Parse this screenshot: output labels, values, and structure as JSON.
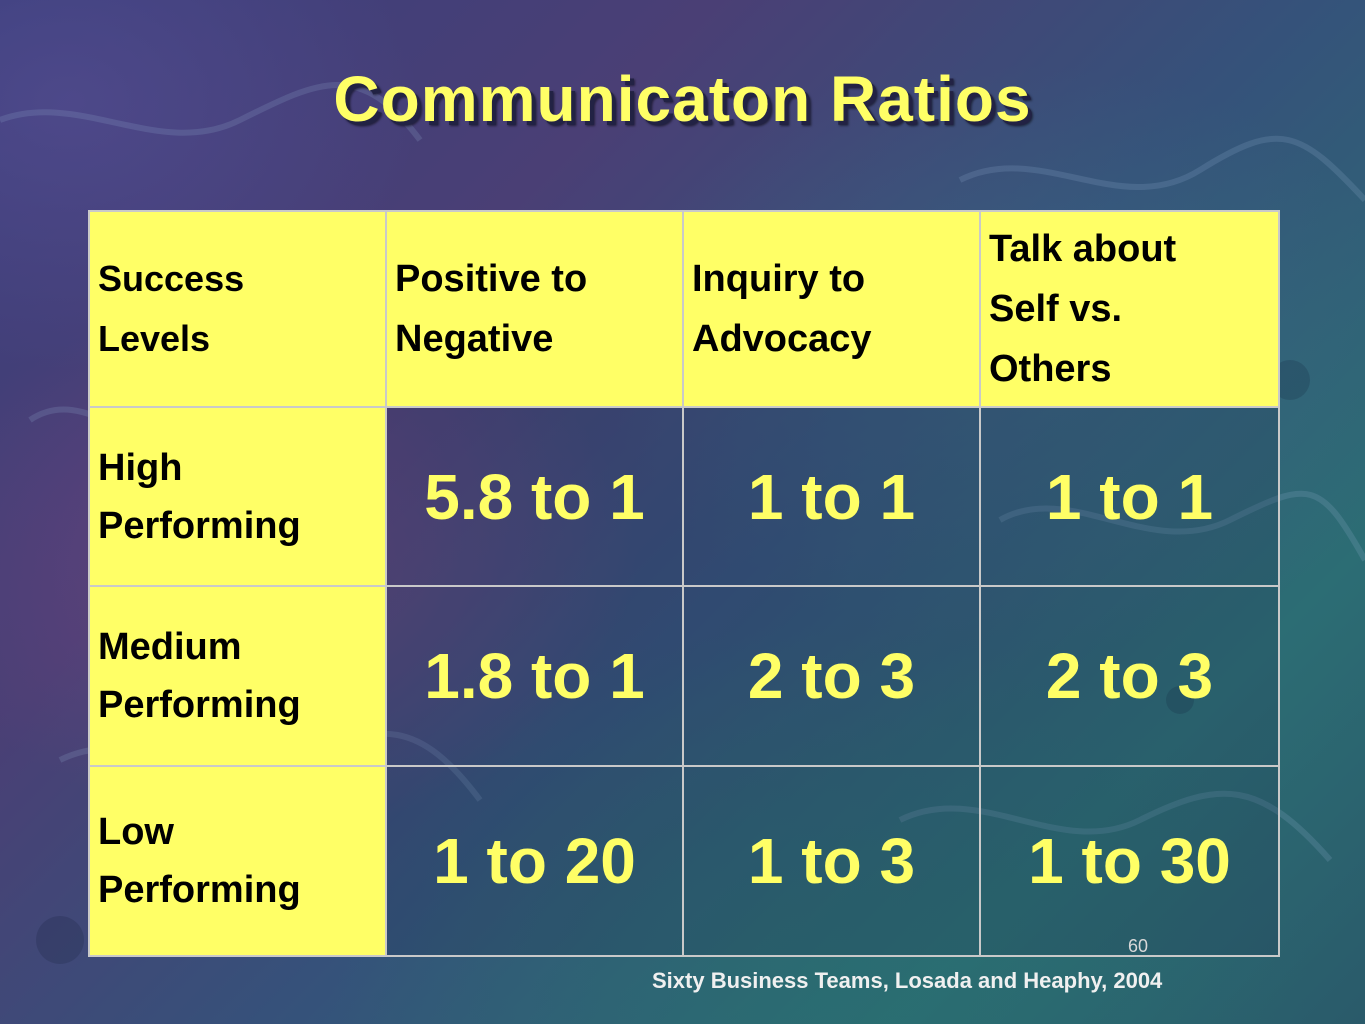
{
  "title": "Communicaton Ratios",
  "table": {
    "headers": [
      [
        "Success",
        "Levels"
      ],
      [
        "Positive to",
        "Negative"
      ],
      [
        "Inquiry to",
        "Advocacy"
      ],
      [
        "Talk about",
        "Self vs.",
        "Others"
      ]
    ],
    "rows": [
      {
        "label": [
          "High",
          "Performing"
        ],
        "values": [
          "5.8 to 1",
          "1 to 1",
          "1 to 1"
        ]
      },
      {
        "label": [
          "Medium",
          "Performing"
        ],
        "values": [
          "1.8 to 1",
          "2 to 3",
          "2 to 3"
        ]
      },
      {
        "label": [
          "Low",
          "Performing"
        ],
        "values": [
          "1 to 20",
          "1 to 3",
          "1 to 30"
        ]
      }
    ]
  },
  "slide_number": "60",
  "source": "Sixty Business Teams, Losada and Heaphy, 2004",
  "colors": {
    "accent_yellow": "#ffff66",
    "title_shadow": "#222244"
  }
}
